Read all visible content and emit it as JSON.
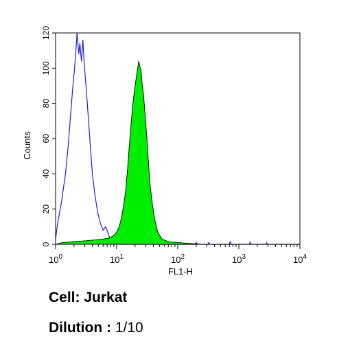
{
  "chart_data": {
    "type": "area",
    "xlabel": "FL1-H",
    "ylabel": "Counts",
    "x_scale": "log",
    "xlim": [
      1,
      10000
    ],
    "ylim": [
      0,
      120
    ],
    "y_ticks": [
      0,
      20,
      40,
      60,
      80,
      100,
      120
    ],
    "x_ticks": [
      {
        "base": "10",
        "exp": "0"
      },
      {
        "base": "10",
        "exp": "1"
      },
      {
        "base": "10",
        "exp": "2"
      },
      {
        "base": "10",
        "exp": "3"
      },
      {
        "base": "10",
        "exp": "4"
      }
    ],
    "series": [
      {
        "style": "outline",
        "color": "#1f1fd0",
        "points": [
          [
            1.0,
            3
          ],
          [
            1.08,
            12
          ],
          [
            1.25,
            24
          ],
          [
            1.45,
            40
          ],
          [
            1.6,
            55
          ],
          [
            1.75,
            72
          ],
          [
            1.9,
            88
          ],
          [
            2.05,
            100
          ],
          [
            2.15,
            110
          ],
          [
            2.25,
            120
          ],
          [
            2.4,
            108
          ],
          [
            2.5,
            114
          ],
          [
            2.65,
            104
          ],
          [
            2.8,
            116
          ],
          [
            2.95,
            102
          ],
          [
            3.15,
            90
          ],
          [
            3.4,
            74
          ],
          [
            3.7,
            56
          ],
          [
            4.0,
            40
          ],
          [
            4.4,
            28
          ],
          [
            4.9,
            18
          ],
          [
            5.4,
            12
          ],
          [
            6.0,
            8
          ],
          [
            6.6,
            10
          ],
          [
            7.3,
            6
          ],
          [
            8.0,
            2
          ],
          [
            9.0,
            1
          ],
          [
            11,
            0
          ],
          [
            100,
            0
          ],
          [
            190,
            0
          ],
          [
            200,
            1
          ],
          [
            215,
            0
          ],
          [
            310,
            0
          ],
          [
            320,
            1
          ],
          [
            335,
            0
          ],
          [
            700,
            0
          ],
          [
            720,
            1.5
          ],
          [
            760,
            0
          ],
          [
            1500,
            0
          ],
          [
            1530,
            1.5
          ],
          [
            1570,
            0
          ],
          [
            2800,
            0
          ],
          [
            2850,
            1
          ],
          [
            2900,
            0
          ],
          [
            10000,
            0
          ]
        ]
      },
      {
        "style": "filled",
        "color": "#00ee00",
        "points": [
          [
            1.0,
            0
          ],
          [
            1.3,
            1
          ],
          [
            2.0,
            1.5
          ],
          [
            3.0,
            2
          ],
          [
            4.5,
            2.5
          ],
          [
            6.0,
            3
          ],
          [
            7.5,
            3.5
          ],
          [
            9.0,
            5
          ],
          [
            10,
            7
          ],
          [
            11,
            10
          ],
          [
            12,
            15
          ],
          [
            13,
            22
          ],
          [
            14,
            30
          ],
          [
            15,
            42
          ],
          [
            16,
            55
          ],
          [
            17,
            66
          ],
          [
            18,
            76
          ],
          [
            19,
            84
          ],
          [
            20,
            90
          ],
          [
            21,
            95
          ],
          [
            22,
            100
          ],
          [
            23,
            104
          ],
          [
            24,
            101
          ],
          [
            25,
            99
          ],
          [
            26,
            92
          ],
          [
            27.5,
            85
          ],
          [
            29,
            75
          ],
          [
            31,
            62
          ],
          [
            33,
            48
          ],
          [
            35,
            35
          ],
          [
            38,
            24
          ],
          [
            42,
            14
          ],
          [
            47,
            7
          ],
          [
            55,
            3
          ],
          [
            70,
            1.5
          ],
          [
            100,
            1
          ],
          [
            150,
            0.5
          ],
          [
            250,
            0
          ],
          [
            10000,
            0
          ]
        ]
      }
    ]
  },
  "captions": {
    "cell_label": "Cell: Jurkat",
    "dilution_label": "Dilution :",
    "dilution_value": "1/10"
  }
}
